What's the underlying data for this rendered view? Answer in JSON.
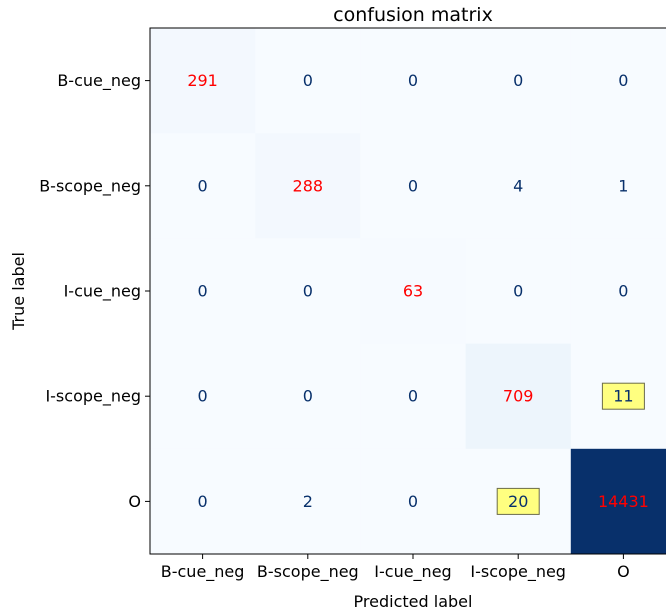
{
  "chart_data": {
    "type": "heatmap",
    "title": "confusion matrix",
    "xlabel": "Predicted label",
    "ylabel": "True label",
    "x_categories": [
      "B-cue_neg",
      "B-scope_neg",
      "I-cue_neg",
      "I-scope_neg",
      "O"
    ],
    "y_categories": [
      "B-cue_neg",
      "B-scope_neg",
      "I-cue_neg",
      "I-scope_neg",
      "O"
    ],
    "values": [
      [
        291,
        0,
        0,
        0,
        0
      ],
      [
        0,
        288,
        0,
        4,
        1
      ],
      [
        0,
        0,
        63,
        0,
        0
      ],
      [
        0,
        0,
        0,
        709,
        11
      ],
      [
        0,
        2,
        0,
        20,
        14431
      ]
    ],
    "colormap": "Blues",
    "diagonal_text_color": "#ff0000",
    "offdiag_text_color": "#08306b",
    "highlight_fill": "#ffff80",
    "highlighted_cells": [
      [
        3,
        4
      ],
      [
        4,
        3
      ]
    ],
    "colorbar": false,
    "grid": false
  }
}
